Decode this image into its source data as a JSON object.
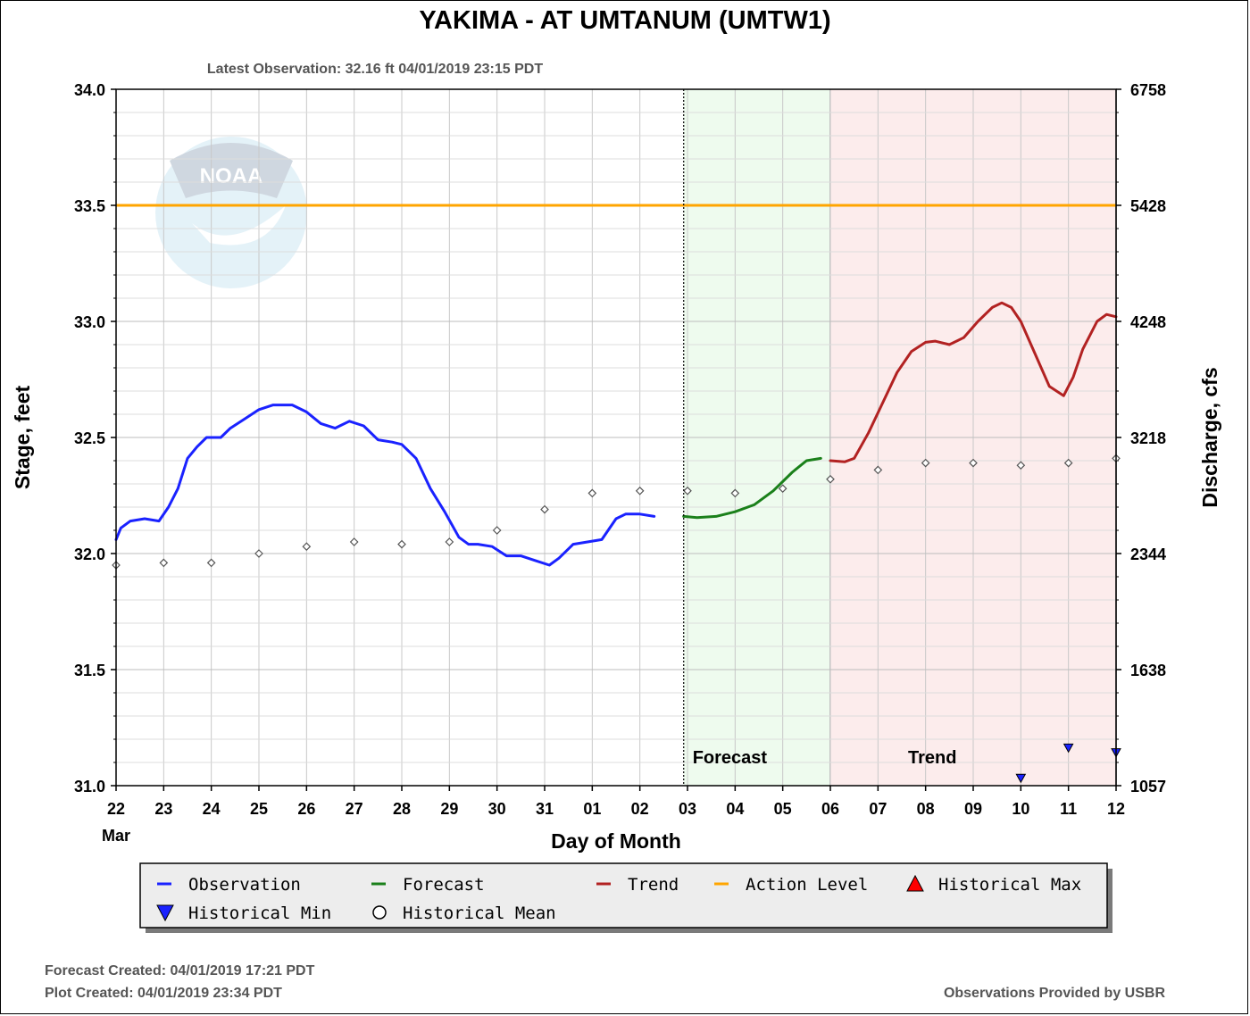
{
  "chart_data": {
    "type": "line",
    "title": "YAKIMA - AT UMTANUM  (UMTW1)",
    "subtitle": "Latest Observation: 32.16 ft 04/01/2019 23:15 PDT",
    "xlabel": "Day of Month",
    "ylabel": "Stage, feet",
    "y2label": "Discharge, cfs",
    "x_month_label": "Mar",
    "x_ticks": [
      "22",
      "23",
      "24",
      "25",
      "26",
      "27",
      "28",
      "29",
      "30",
      "31",
      "01",
      "02",
      "03",
      "04",
      "05",
      "06",
      "07",
      "08",
      "09",
      "10",
      "11",
      "12"
    ],
    "x_range_days": [
      0,
      21
    ],
    "ylim": [
      31.0,
      34.0
    ],
    "y_ticks": [
      "31.0",
      "31.5",
      "32.0",
      "32.5",
      "33.0",
      "33.5",
      "34.0"
    ],
    "y2_ticks": [
      "1057",
      "1638",
      "2344",
      "3218",
      "4248",
      "5428",
      "6758"
    ],
    "grid": true,
    "regions": [
      {
        "label": "Forecast",
        "from_day": 11.92,
        "to_day": 15.0,
        "color": "#eefbee"
      },
      {
        "label": "Trend",
        "from_day": 15.0,
        "to_day": 21.0,
        "color": "#fcecec"
      }
    ],
    "action_level": 33.5,
    "series": [
      {
        "name": "Observation",
        "color": "#1a22ff",
        "points": [
          [
            0,
            32.06
          ],
          [
            0.1,
            32.11
          ],
          [
            0.3,
            32.14
          ],
          [
            0.6,
            32.15
          ],
          [
            0.9,
            32.14
          ],
          [
            1.1,
            32.2
          ],
          [
            1.3,
            32.28
          ],
          [
            1.5,
            32.41
          ],
          [
            1.7,
            32.46
          ],
          [
            1.9,
            32.5
          ],
          [
            2.2,
            32.5
          ],
          [
            2.4,
            32.54
          ],
          [
            2.7,
            32.58
          ],
          [
            3.0,
            32.62
          ],
          [
            3.3,
            32.64
          ],
          [
            3.7,
            32.64
          ],
          [
            4.0,
            32.61
          ],
          [
            4.3,
            32.56
          ],
          [
            4.6,
            32.54
          ],
          [
            4.9,
            32.57
          ],
          [
            5.2,
            32.55
          ],
          [
            5.5,
            32.49
          ],
          [
            5.8,
            32.48
          ],
          [
            6.0,
            32.47
          ],
          [
            6.3,
            32.41
          ],
          [
            6.6,
            32.28
          ],
          [
            6.9,
            32.18
          ],
          [
            7.2,
            32.07
          ],
          [
            7.4,
            32.04
          ],
          [
            7.6,
            32.04
          ],
          [
            7.9,
            32.03
          ],
          [
            8.2,
            31.99
          ],
          [
            8.5,
            31.99
          ],
          [
            8.8,
            31.97
          ],
          [
            9.1,
            31.95
          ],
          [
            9.3,
            31.98
          ],
          [
            9.6,
            32.04
          ],
          [
            9.9,
            32.05
          ],
          [
            10.2,
            32.06
          ],
          [
            10.3,
            32.09
          ],
          [
            10.5,
            32.15
          ],
          [
            10.7,
            32.17
          ],
          [
            11.0,
            32.17
          ],
          [
            11.3,
            32.16
          ]
        ]
      },
      {
        "name": "Forecast",
        "color": "#1a801a",
        "points": [
          [
            11.92,
            32.16
          ],
          [
            12.2,
            32.155
          ],
          [
            12.6,
            32.16
          ],
          [
            13.0,
            32.18
          ],
          [
            13.4,
            32.21
          ],
          [
            13.8,
            32.27
          ],
          [
            14.2,
            32.35
          ],
          [
            14.5,
            32.4
          ],
          [
            14.8,
            32.41
          ]
        ]
      },
      {
        "name": "Trend",
        "color": "#b22222",
        "points": [
          [
            15.0,
            32.4
          ],
          [
            15.3,
            32.395
          ],
          [
            15.5,
            32.41
          ],
          [
            15.8,
            32.52
          ],
          [
            16.1,
            32.65
          ],
          [
            16.4,
            32.78
          ],
          [
            16.7,
            32.87
          ],
          [
            17.0,
            32.91
          ],
          [
            17.2,
            32.915
          ],
          [
            17.5,
            32.9
          ],
          [
            17.8,
            32.93
          ],
          [
            18.1,
            33.0
          ],
          [
            18.4,
            33.06
          ],
          [
            18.6,
            33.08
          ],
          [
            18.8,
            33.06
          ],
          [
            19.0,
            33.0
          ],
          [
            19.3,
            32.86
          ],
          [
            19.6,
            32.72
          ],
          [
            19.9,
            32.68
          ],
          [
            20.1,
            32.76
          ],
          [
            20.3,
            32.88
          ],
          [
            20.6,
            33.0
          ],
          [
            20.8,
            33.03
          ],
          [
            21.0,
            33.02
          ]
        ]
      }
    ],
    "historical_mean": [
      [
        0,
        31.95
      ],
      [
        1,
        31.96
      ],
      [
        2,
        31.96
      ],
      [
        3,
        32.0
      ],
      [
        4,
        32.03
      ],
      [
        5,
        32.05
      ],
      [
        6,
        32.04
      ],
      [
        7,
        32.05
      ],
      [
        8,
        32.1
      ],
      [
        9,
        32.19
      ],
      [
        10,
        32.26
      ],
      [
        11,
        32.27
      ],
      [
        12,
        32.27
      ],
      [
        13,
        32.26
      ],
      [
        14,
        32.28
      ],
      [
        15,
        32.32
      ],
      [
        16,
        32.36
      ],
      [
        17,
        32.39
      ],
      [
        18,
        32.39
      ],
      [
        19,
        32.38
      ],
      [
        20,
        32.39
      ],
      [
        21,
        32.41
      ]
    ],
    "historical_min": [
      [
        19,
        31.03
      ],
      [
        20,
        31.16
      ],
      [
        21,
        31.14
      ]
    ],
    "legend": [
      {
        "label": "Observation",
        "marker": "line",
        "color": "#1a22ff"
      },
      {
        "label": "Forecast",
        "marker": "line",
        "color": "#1a801a"
      },
      {
        "label": "Trend",
        "marker": "line",
        "color": "#b22222"
      },
      {
        "label": "Action Level",
        "marker": "line",
        "color": "#ffa500"
      },
      {
        "label": "Historical Max",
        "marker": "triangle-up",
        "color": "#ff0000"
      },
      {
        "label": "Historical Min",
        "marker": "triangle-down",
        "color": "#1a22ff"
      },
      {
        "label": "Historical Mean",
        "marker": "circle",
        "color": "#000000"
      }
    ],
    "legend_position": "bottom"
  },
  "footer": {
    "forecast_created": "Forecast Created: 04/01/2019 17:21 PDT",
    "plot_created": "Plot Created: 04/01/2019 23:34 PDT",
    "provider": "Observations Provided by USBR"
  },
  "watermark": {
    "text": "NOAA"
  }
}
